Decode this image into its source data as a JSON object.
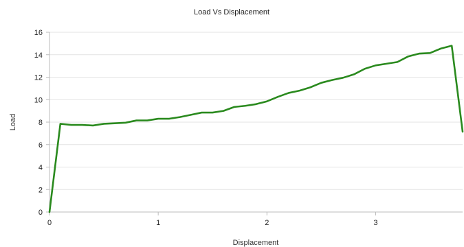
{
  "chart_data": {
    "type": "line",
    "title": "Load Vs Displacement",
    "xlabel": "Displacement",
    "ylabel": "Load",
    "xlim": [
      0,
      3.8
    ],
    "ylim": [
      0,
      16
    ],
    "xticks": [
      0,
      1,
      2,
      3
    ],
    "yticks": [
      0,
      2,
      4,
      6,
      8,
      10,
      12,
      14,
      16
    ],
    "grid": true,
    "legend": "none",
    "series": [
      {
        "color": "#2a8a1e",
        "x": [
          0,
          0.1,
          0.2,
          0.3,
          0.4,
          0.5,
          0.6,
          0.7,
          0.8,
          0.9,
          1.0,
          1.1,
          1.2,
          1.3,
          1.4,
          1.5,
          1.6,
          1.7,
          1.8,
          1.9,
          2.0,
          2.1,
          2.2,
          2.3,
          2.4,
          2.5,
          2.6,
          2.7,
          2.8,
          2.9,
          3.0,
          3.1,
          3.2,
          3.3,
          3.4,
          3.5,
          3.6,
          3.7,
          3.8
        ],
        "y": [
          0,
          7.85,
          7.75,
          7.75,
          7.7,
          7.85,
          7.9,
          7.95,
          8.15,
          8.15,
          8.3,
          8.3,
          8.45,
          8.65,
          8.85,
          8.85,
          9.0,
          9.35,
          9.45,
          9.6,
          9.85,
          10.25,
          10.6,
          10.8,
          11.1,
          11.5,
          11.75,
          11.95,
          12.25,
          12.75,
          13.05,
          13.2,
          13.35,
          13.85,
          14.1,
          14.15,
          14.55,
          14.8,
          7.15
        ]
      }
    ]
  }
}
